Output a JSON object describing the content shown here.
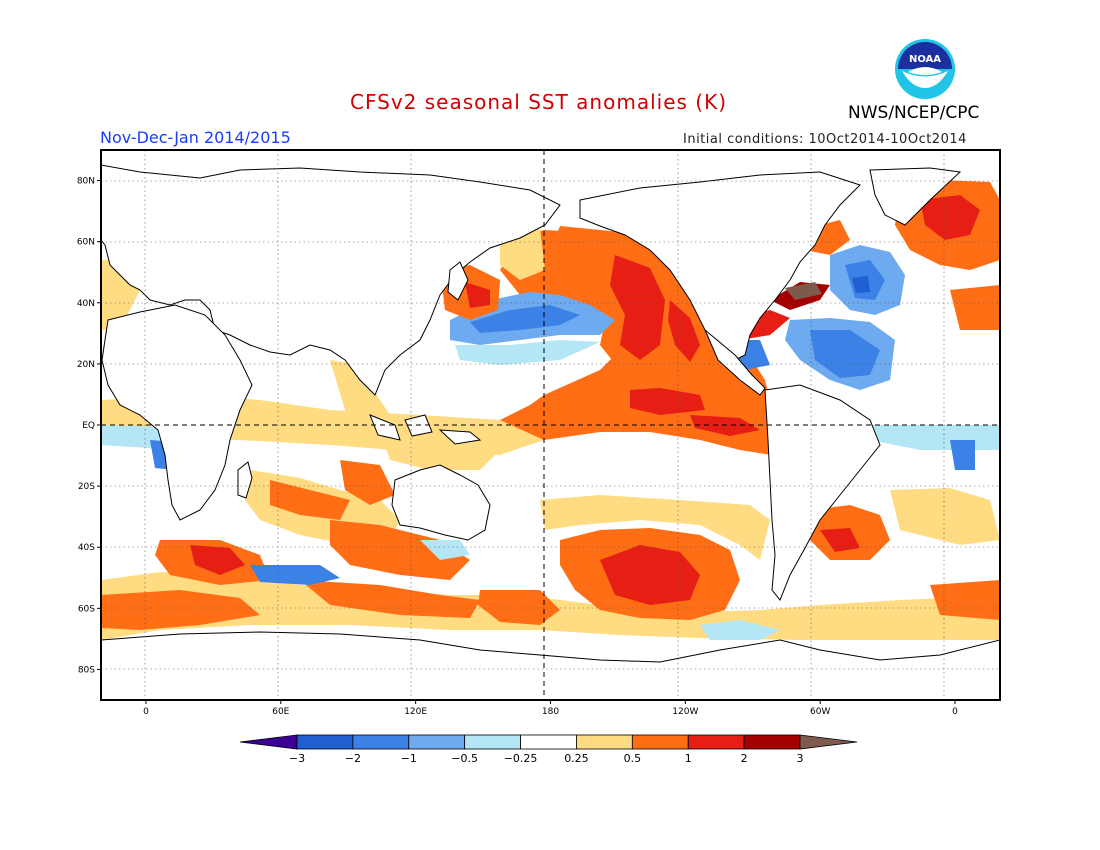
{
  "header": {
    "title": "CFSv2 seasonal SST anomalies (K)",
    "period": "Nov-Dec-Jan 2014/2015",
    "initial_conditions": "Initial conditions: 10Oct2014-10Oct2014",
    "agency": "NWS/NCEP/CPC",
    "logo_text": "NOAA"
  },
  "map": {
    "lat_labels": [
      "80N",
      "60N",
      "40N",
      "20N",
      "EQ",
      "20S",
      "40S",
      "60S",
      "80S"
    ],
    "lon_labels": [
      "0",
      "60E",
      "120E",
      "180",
      "120W",
      "60W",
      "0"
    ],
    "lon_range": [
      -20,
      380
    ],
    "lat_range": [
      -90,
      90
    ]
  },
  "colorbar": {
    "levels": [
      "-3",
      "-2",
      "-1",
      "-0.5",
      "-0.25",
      "0.25",
      "0.5",
      "1",
      "2",
      "3"
    ],
    "colors": [
      "#3c0096",
      "#1f5fd2",
      "#3c82e6",
      "#6eaaf0",
      "#b4e6f5",
      "#ffffff",
      "#ffdc82",
      "#ff6e14",
      "#e61e14",
      "#a50000",
      "#7d5a4b"
    ]
  }
}
